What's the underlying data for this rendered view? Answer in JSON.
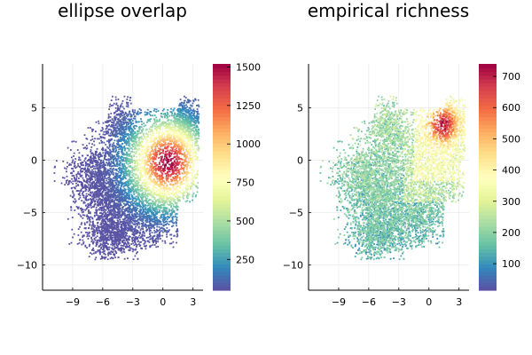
{
  "chart_data": [
    {
      "type": "scatter",
      "title": "ellipse overlap",
      "xlabel": "",
      "ylabel": "",
      "xlim": [
        -12,
        4
      ],
      "ylim": [
        -12.4,
        9.2
      ],
      "xticks": [
        -9,
        -6,
        -3,
        0,
        3
      ],
      "yticks": [
        -10,
        -5,
        0,
        5
      ],
      "xtick_labels": [
        "−9",
        "−6",
        "−3",
        "0",
        "3"
      ],
      "ytick_labels": [
        "−10",
        "−5",
        "0",
        "5"
      ],
      "grid": true,
      "colormap": "Spectral (reversed)",
      "colorbar": {
        "range": [
          50,
          1520
        ],
        "ticks": [
          250,
          500,
          750,
          1000,
          1250,
          1500
        ],
        "tick_labels": [
          "250",
          "500",
          "750",
          "1000",
          "1250",
          "1500"
        ]
      },
      "peak": {
        "x": 0.5,
        "y": -0.2,
        "value": 1500
      }
    },
    {
      "type": "scatter",
      "title": "empirical richness",
      "xlabel": "",
      "ylabel": "",
      "xlim": [
        -12,
        4
      ],
      "ylim": [
        -12.4,
        9.2
      ],
      "xticks": [
        -9,
        -6,
        -3,
        0,
        3
      ],
      "yticks": [
        -10,
        -5,
        0,
        5
      ],
      "xtick_labels": [
        "−9",
        "−6",
        "−3",
        "0",
        "3"
      ],
      "ytick_labels": [
        "−10",
        "−5",
        "0",
        "5"
      ],
      "grid": true,
      "colormap": "Spectral (reversed)",
      "colorbar": {
        "range": [
          15,
          740
        ],
        "ticks": [
          100,
          200,
          300,
          400,
          500,
          600,
          700
        ],
        "tick_labels": [
          "100",
          "200",
          "300",
          "400",
          "500",
          "600",
          "700"
        ]
      },
      "peak": {
        "x": 1.5,
        "y": 3.5,
        "value": 700
      }
    }
  ],
  "colors": {
    "scale": [
      "#5e4fa2",
      "#3288bd",
      "#66c2a5",
      "#abdda4",
      "#e6f598",
      "#ffffbf",
      "#fee08b",
      "#fdae61",
      "#f46d43",
      "#d53e4f",
      "#9e0142"
    ]
  }
}
